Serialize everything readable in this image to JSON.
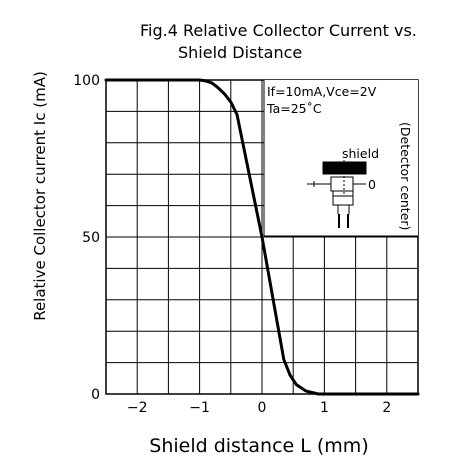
{
  "chart_data": {
    "type": "line",
    "title": [
      "Fig.4  Relative  Collector  Current  vs.",
      "Shield  Distance"
    ],
    "xlabel": "Shield  distance  L  (mm)",
    "ylabel": "Relative  Collector  current  Ic  (mA)",
    "xlim": [
      -2.5,
      2.5
    ],
    "ylim": [
      0,
      100
    ],
    "x_ticks": [
      -2,
      -1,
      0,
      1,
      2
    ],
    "x_tick_labels": [
      "−2",
      "−1",
      "0",
      "1",
      "2"
    ],
    "y_ticks": [
      0,
      50,
      100
    ],
    "y_tick_labels": [
      "0",
      "50",
      "100"
    ],
    "grid": true,
    "series": [
      {
        "x": [
          -2.5,
          -1.2,
          -1.0,
          -0.9,
          -0.8,
          -0.7,
          -0.6,
          -0.5,
          -0.4,
          0.0,
          0.35,
          0.45,
          0.55,
          0.7,
          0.9,
          1.0,
          2.5
        ],
        "y": [
          100,
          100,
          100,
          99.7,
          99,
          97.5,
          95.5,
          93,
          89,
          50,
          11,
          6,
          3,
          1,
          0,
          0,
          0
        ]
      }
    ],
    "annotations": {
      "conditions": [
        "If=10mA,Vce=2V",
        "Ta=25˚C"
      ],
      "shield_label": "shield",
      "zero_label": "0",
      "side_label": "(Detector  center)"
    }
  }
}
